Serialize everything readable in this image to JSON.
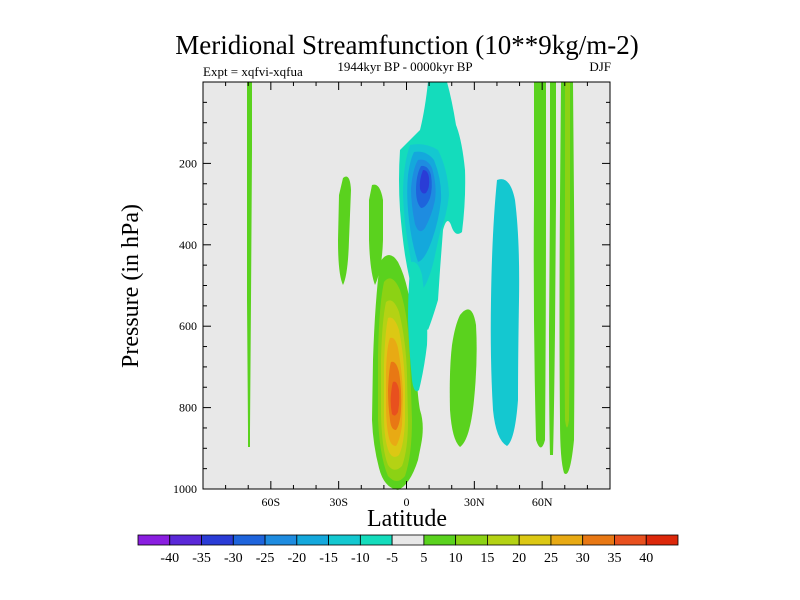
{
  "chart_data": {
    "type": "contour",
    "title": "Meridional Streamfunction (10**9kg/m-2)",
    "subtitle": "1944kyr BP - 0000kyr BP",
    "left_label": "Expt = xqfvi-xqfua",
    "right_label": "DJF",
    "xlabel": "Latitude",
    "ylabel": "Pressure (in hPa)",
    "xlim": [
      -90,
      90
    ],
    "ylim": [
      1000,
      0
    ],
    "x_ticks": [
      {
        "value": -60,
        "label": "60S"
      },
      {
        "value": -30,
        "label": "30S"
      },
      {
        "value": 0,
        "label": "0"
      },
      {
        "value": 30,
        "label": "30N"
      },
      {
        "value": 60,
        "label": "60N"
      }
    ],
    "y_ticks": [
      {
        "value": 200,
        "label": "200"
      },
      {
        "value": 400,
        "label": "400"
      },
      {
        "value": 600,
        "label": "600"
      },
      {
        "value": 800,
        "label": "800"
      },
      {
        "value": 1000,
        "label": "1000"
      }
    ],
    "background": "#e8e8e8",
    "colorbar": {
      "labels": [
        "-40",
        "-35",
        "-30",
        "-25",
        "-20",
        "-15",
        "-10",
        "-5",
        "5",
        "10",
        "15",
        "20",
        "25",
        "30",
        "35",
        "40"
      ],
      "colors": [
        "#8a1ee0",
        "#5a28d8",
        "#2a3cd6",
        "#1e64dc",
        "#1e8ce0",
        "#14a8dc",
        "#14c8d0",
        "#14dcbc",
        "#e8e8e8",
        "#5ad21e",
        "#8cd214",
        "#b4d214",
        "#dcc814",
        "#e8aa14",
        "#e87814",
        "#e8501e",
        "#dc280a"
      ]
    },
    "features": [
      {
        "name": "far-sh-positive-strip",
        "lat_min": -68.5,
        "lat_max": -66.5,
        "p_top": 0,
        "p_bottom": 900,
        "value": 10
      },
      {
        "name": "sh-subtropic-positive-cell",
        "lat_min": -30,
        "lat_max": -26,
        "p_top": 220,
        "p_bottom": 490,
        "value": 10
      },
      {
        "name": "sh-tropic-positive-cell",
        "lat_min": -17,
        "lat_max": -10,
        "p_top": 240,
        "p_bottom": 500,
        "value": 10
      },
      {
        "name": "tropical-positive-cell",
        "lat_min": -13,
        "lat_max": 8,
        "p_top": 360,
        "p_bottom": 980,
        "value": 35
      },
      {
        "name": "tropical-negative-cell",
        "lat_min": -6,
        "lat_max": 26,
        "p_top": 0,
        "p_bottom": 620,
        "value": -30
      },
      {
        "name": "equatorial-negative-strip",
        "lat_min": 0,
        "lat_max": 7,
        "p_top": 500,
        "p_bottom": 830,
        "value": -10
      },
      {
        "name": "nh-subtropic-positive-cell",
        "lat_min": 19,
        "lat_max": 31,
        "p_top": 570,
        "p_bottom": 950,
        "value": 10
      },
      {
        "name": "nh-midlat-negative-cell",
        "lat_min": 38,
        "lat_max": 50,
        "p_top": 210,
        "p_bottom": 950,
        "value": -10
      },
      {
        "name": "nh-high-lat-positive-strips",
        "lat_min": 57,
        "lat_max": 74,
        "p_top": 0,
        "p_bottom": 970,
        "value": 15
      }
    ]
  }
}
